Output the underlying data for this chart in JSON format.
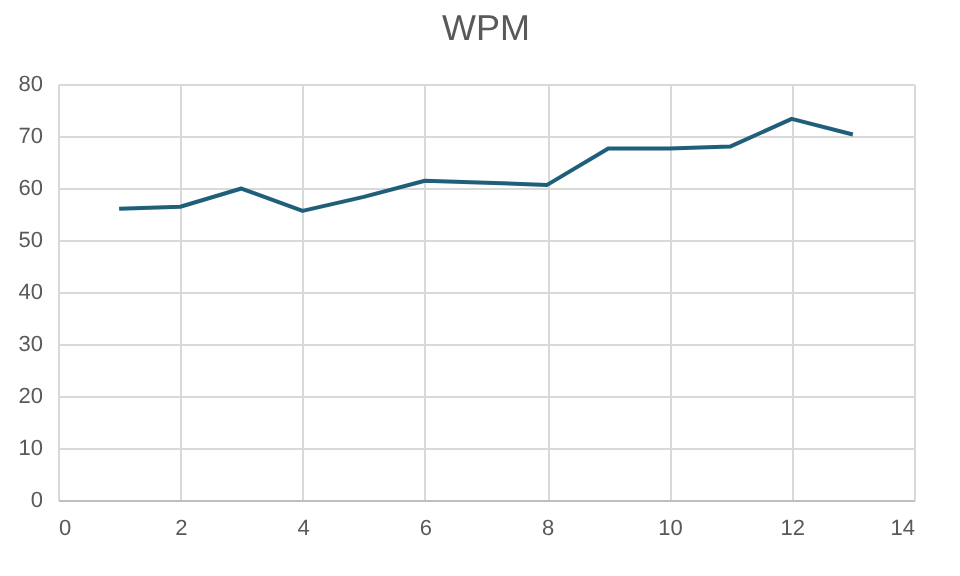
{
  "chart_data": {
    "type": "line",
    "title": "WPM",
    "x": [
      1,
      2,
      3,
      4,
      5,
      6,
      7,
      8,
      9,
      10,
      11,
      12,
      13
    ],
    "series": [
      {
        "color": "#1f5f7a",
        "values": [
          56.0,
          56.4,
          59.9,
          55.6,
          58.3,
          61.4,
          61.0,
          60.6,
          67.6,
          67.6,
          68.0,
          73.3,
          70.3
        ]
      }
    ],
    "xlim": [
      0,
      14
    ],
    "xticks": [
      0,
      2,
      4,
      6,
      8,
      10,
      12,
      14
    ],
    "ylim": [
      0,
      80
    ],
    "yticks": [
      0,
      10,
      20,
      30,
      40,
      50,
      60,
      70,
      80
    ],
    "grid": true,
    "legend": false,
    "marker": "none",
    "line_style": "solid"
  }
}
